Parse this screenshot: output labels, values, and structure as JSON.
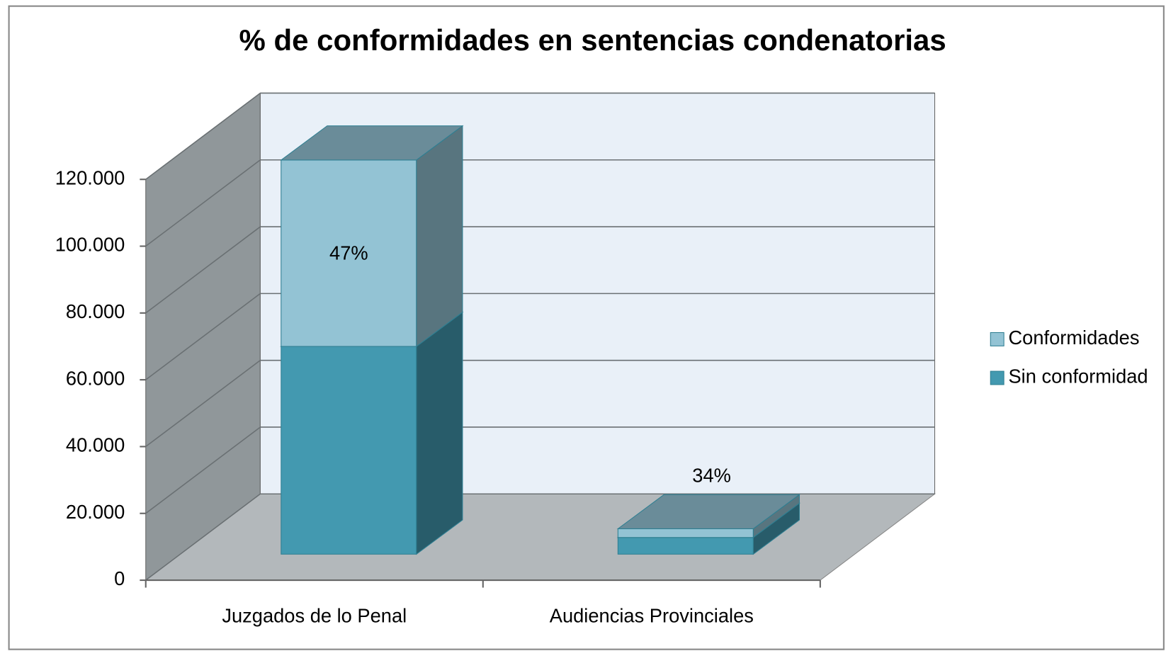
{
  "chart_data": {
    "type": "bar3d_stacked",
    "title": "% de conformidades en sentencias condenatorias",
    "categories": [
      "Juzgados de lo Penal",
      "Audiencias Provinciales"
    ],
    "series": [
      {
        "name": "Sin conformidad",
        "color": "#4399b0",
        "values": [
          62200,
          5000
        ]
      },
      {
        "name": "Conformidades",
        "color": "#93c3d4",
        "values": [
          55800,
          2600
        ]
      }
    ],
    "annotations": [
      "47%",
      "34%"
    ],
    "ylim": [
      0,
      120000
    ],
    "yticks": [
      0,
      {
        "value": 20000,
        "label": "20.000"
      },
      {
        "value": 40000,
        "label": "40.000"
      },
      {
        "value": 60000,
        "label": "60.000"
      },
      {
        "value": 80000,
        "label": "80.000"
      },
      {
        "value": 100000,
        "label": "100.000"
      },
      {
        "value": 120000,
        "label": "120.000"
      }
    ],
    "grid": true,
    "legend": "right"
  }
}
